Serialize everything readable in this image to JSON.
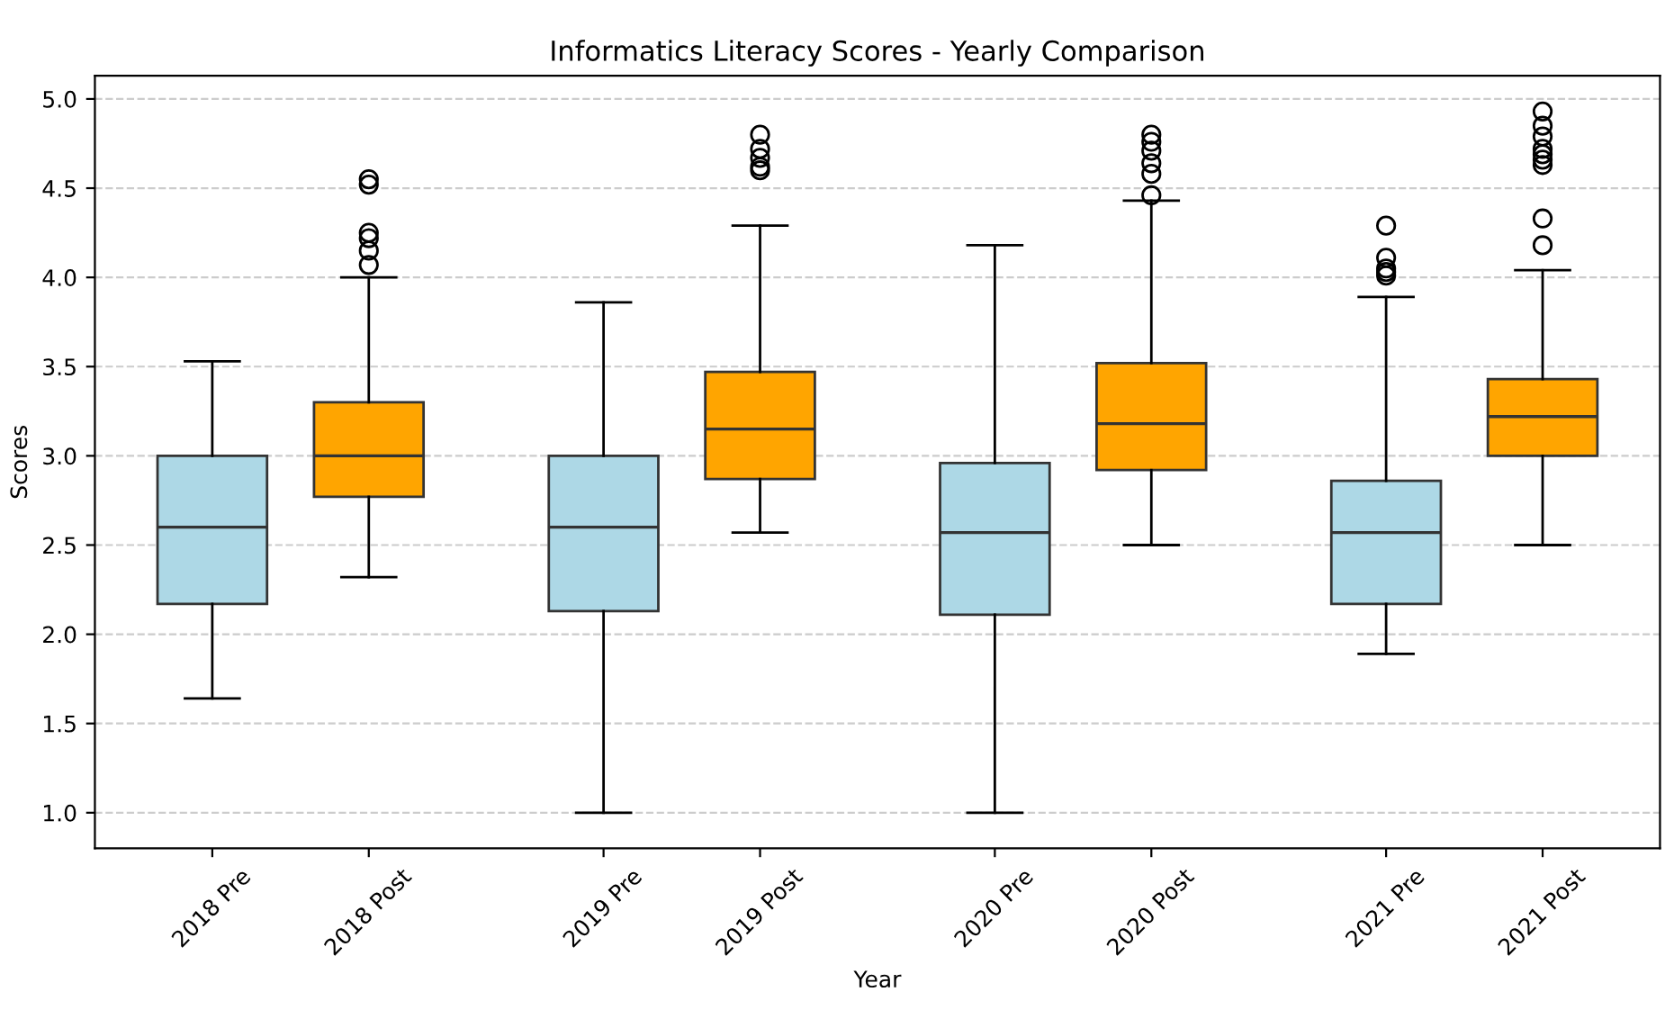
{
  "chart_data": {
    "type": "box",
    "title": "Informatics Literacy Scores - Yearly Comparison",
    "xlabel": "Year",
    "ylabel": "Scores",
    "categories": [
      "2018 Pre",
      "2018 Post",
      "2019 Pre",
      "2019 Post",
      "2020 Pre",
      "2020 Post",
      "2021 Pre",
      "2021 Post"
    ],
    "colors": [
      "#add8e6",
      "#ffa500",
      "#add8e6",
      "#ffa500",
      "#add8e6",
      "#ffa500",
      "#add8e6",
      "#ffa500"
    ],
    "boxes": [
      {
        "low": 1.64,
        "q1": 2.17,
        "median": 2.6,
        "q3": 3.0,
        "high": 3.53
      },
      {
        "low": 2.32,
        "q1": 2.77,
        "median": 3.0,
        "q3": 3.3,
        "high": 4.0,
        "outliers": [
          4.07,
          4.15,
          4.22,
          4.25,
          4.52,
          4.55
        ]
      },
      {
        "low": 1.0,
        "q1": 2.13,
        "median": 2.6,
        "q3": 3.0,
        "high": 3.86
      },
      {
        "low": 2.57,
        "q1": 2.87,
        "median": 3.15,
        "q3": 3.47,
        "high": 4.29,
        "outliers": [
          4.6,
          4.62,
          4.67,
          4.72,
          4.8
        ]
      },
      {
        "low": 1.0,
        "q1": 2.11,
        "median": 2.57,
        "q3": 2.96,
        "high": 4.18
      },
      {
        "low": 2.5,
        "q1": 2.92,
        "median": 3.18,
        "q3": 3.52,
        "high": 4.43,
        "outliers": [
          4.46,
          4.58,
          4.64,
          4.71,
          4.76,
          4.8
        ]
      },
      {
        "low": 1.89,
        "q1": 2.17,
        "median": 2.57,
        "q3": 2.86,
        "high": 3.89,
        "outliers": [
          4.01,
          4.03,
          4.05,
          4.11,
          4.29
        ]
      },
      {
        "low": 2.5,
        "q1": 3.0,
        "median": 3.22,
        "q3": 3.43,
        "high": 4.04,
        "outliers": [
          4.18,
          4.33,
          4.63,
          4.66,
          4.69,
          4.72,
          4.79,
          4.85,
          4.93
        ]
      }
    ],
    "ylim": [
      0.8,
      5.13
    ],
    "yticks": [
      {
        "value": 1,
        "label": "1.0"
      },
      1.5,
      {
        "value": 2,
        "label": "2.0"
      },
      2.5,
      {
        "value": 3,
        "label": "3.0"
      },
      3.5,
      {
        "value": 4,
        "label": "4.0"
      },
      4.5,
      {
        "value": 5,
        "label": "5.0"
      }
    ],
    "grid": "y"
  }
}
